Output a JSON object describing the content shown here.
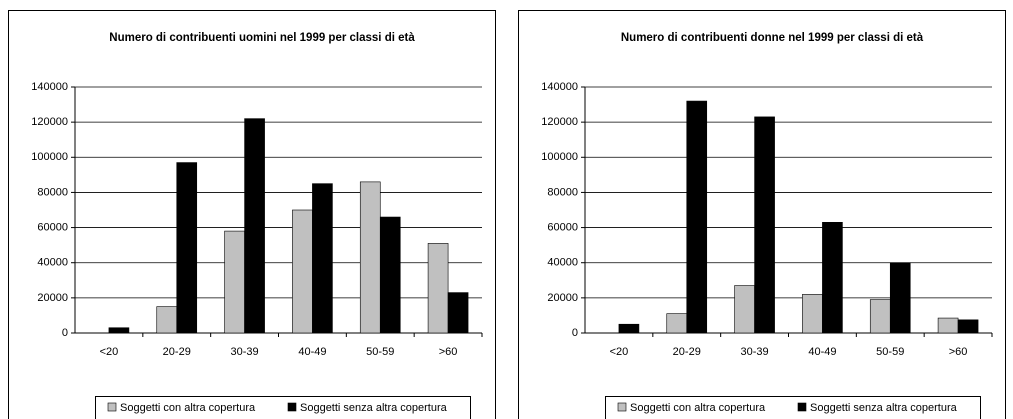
{
  "chart_data": [
    {
      "type": "bar",
      "title": "Numero di contribuenti uomini nel 1999 per classi di età",
      "categories": [
        "<20",
        "20-29",
        "30-39",
        "40-49",
        "50-59",
        ">60"
      ],
      "series": [
        {
          "name": "Soggetti con altra copertura",
          "color": "#c0c0c0",
          "values": [
            0,
            15000,
            58000,
            70000,
            86000,
            51000
          ]
        },
        {
          "name": "Soggetti senza altra copertura",
          "color": "#000000",
          "values": [
            3000,
            97000,
            122000,
            85000,
            66000,
            23000
          ]
        }
      ],
      "ylim": [
        0,
        140000
      ],
      "yticks": [
        0,
        20000,
        40000,
        60000,
        80000,
        100000,
        120000,
        140000
      ],
      "grid": true,
      "legend": "bottom"
    },
    {
      "type": "bar",
      "title": "Numero di contribuenti donne nel 1999 per classi di età",
      "categories": [
        "<20",
        "20-29",
        "30-39",
        "40-49",
        "50-59",
        ">60"
      ],
      "series": [
        {
          "name": "Soggetti con altra copertura",
          "color": "#c0c0c0",
          "values": [
            0,
            11000,
            27000,
            22000,
            19000,
            8500
          ]
        },
        {
          "name": "Soggetti senza altra copertura",
          "color": "#000000",
          "values": [
            5000,
            132000,
            123000,
            63000,
            40000,
            7500
          ]
        }
      ],
      "ylim": [
        0,
        140000
      ],
      "yticks": [
        0,
        20000,
        40000,
        60000,
        80000,
        100000,
        120000,
        140000
      ],
      "grid": true,
      "legend": "bottom"
    }
  ]
}
